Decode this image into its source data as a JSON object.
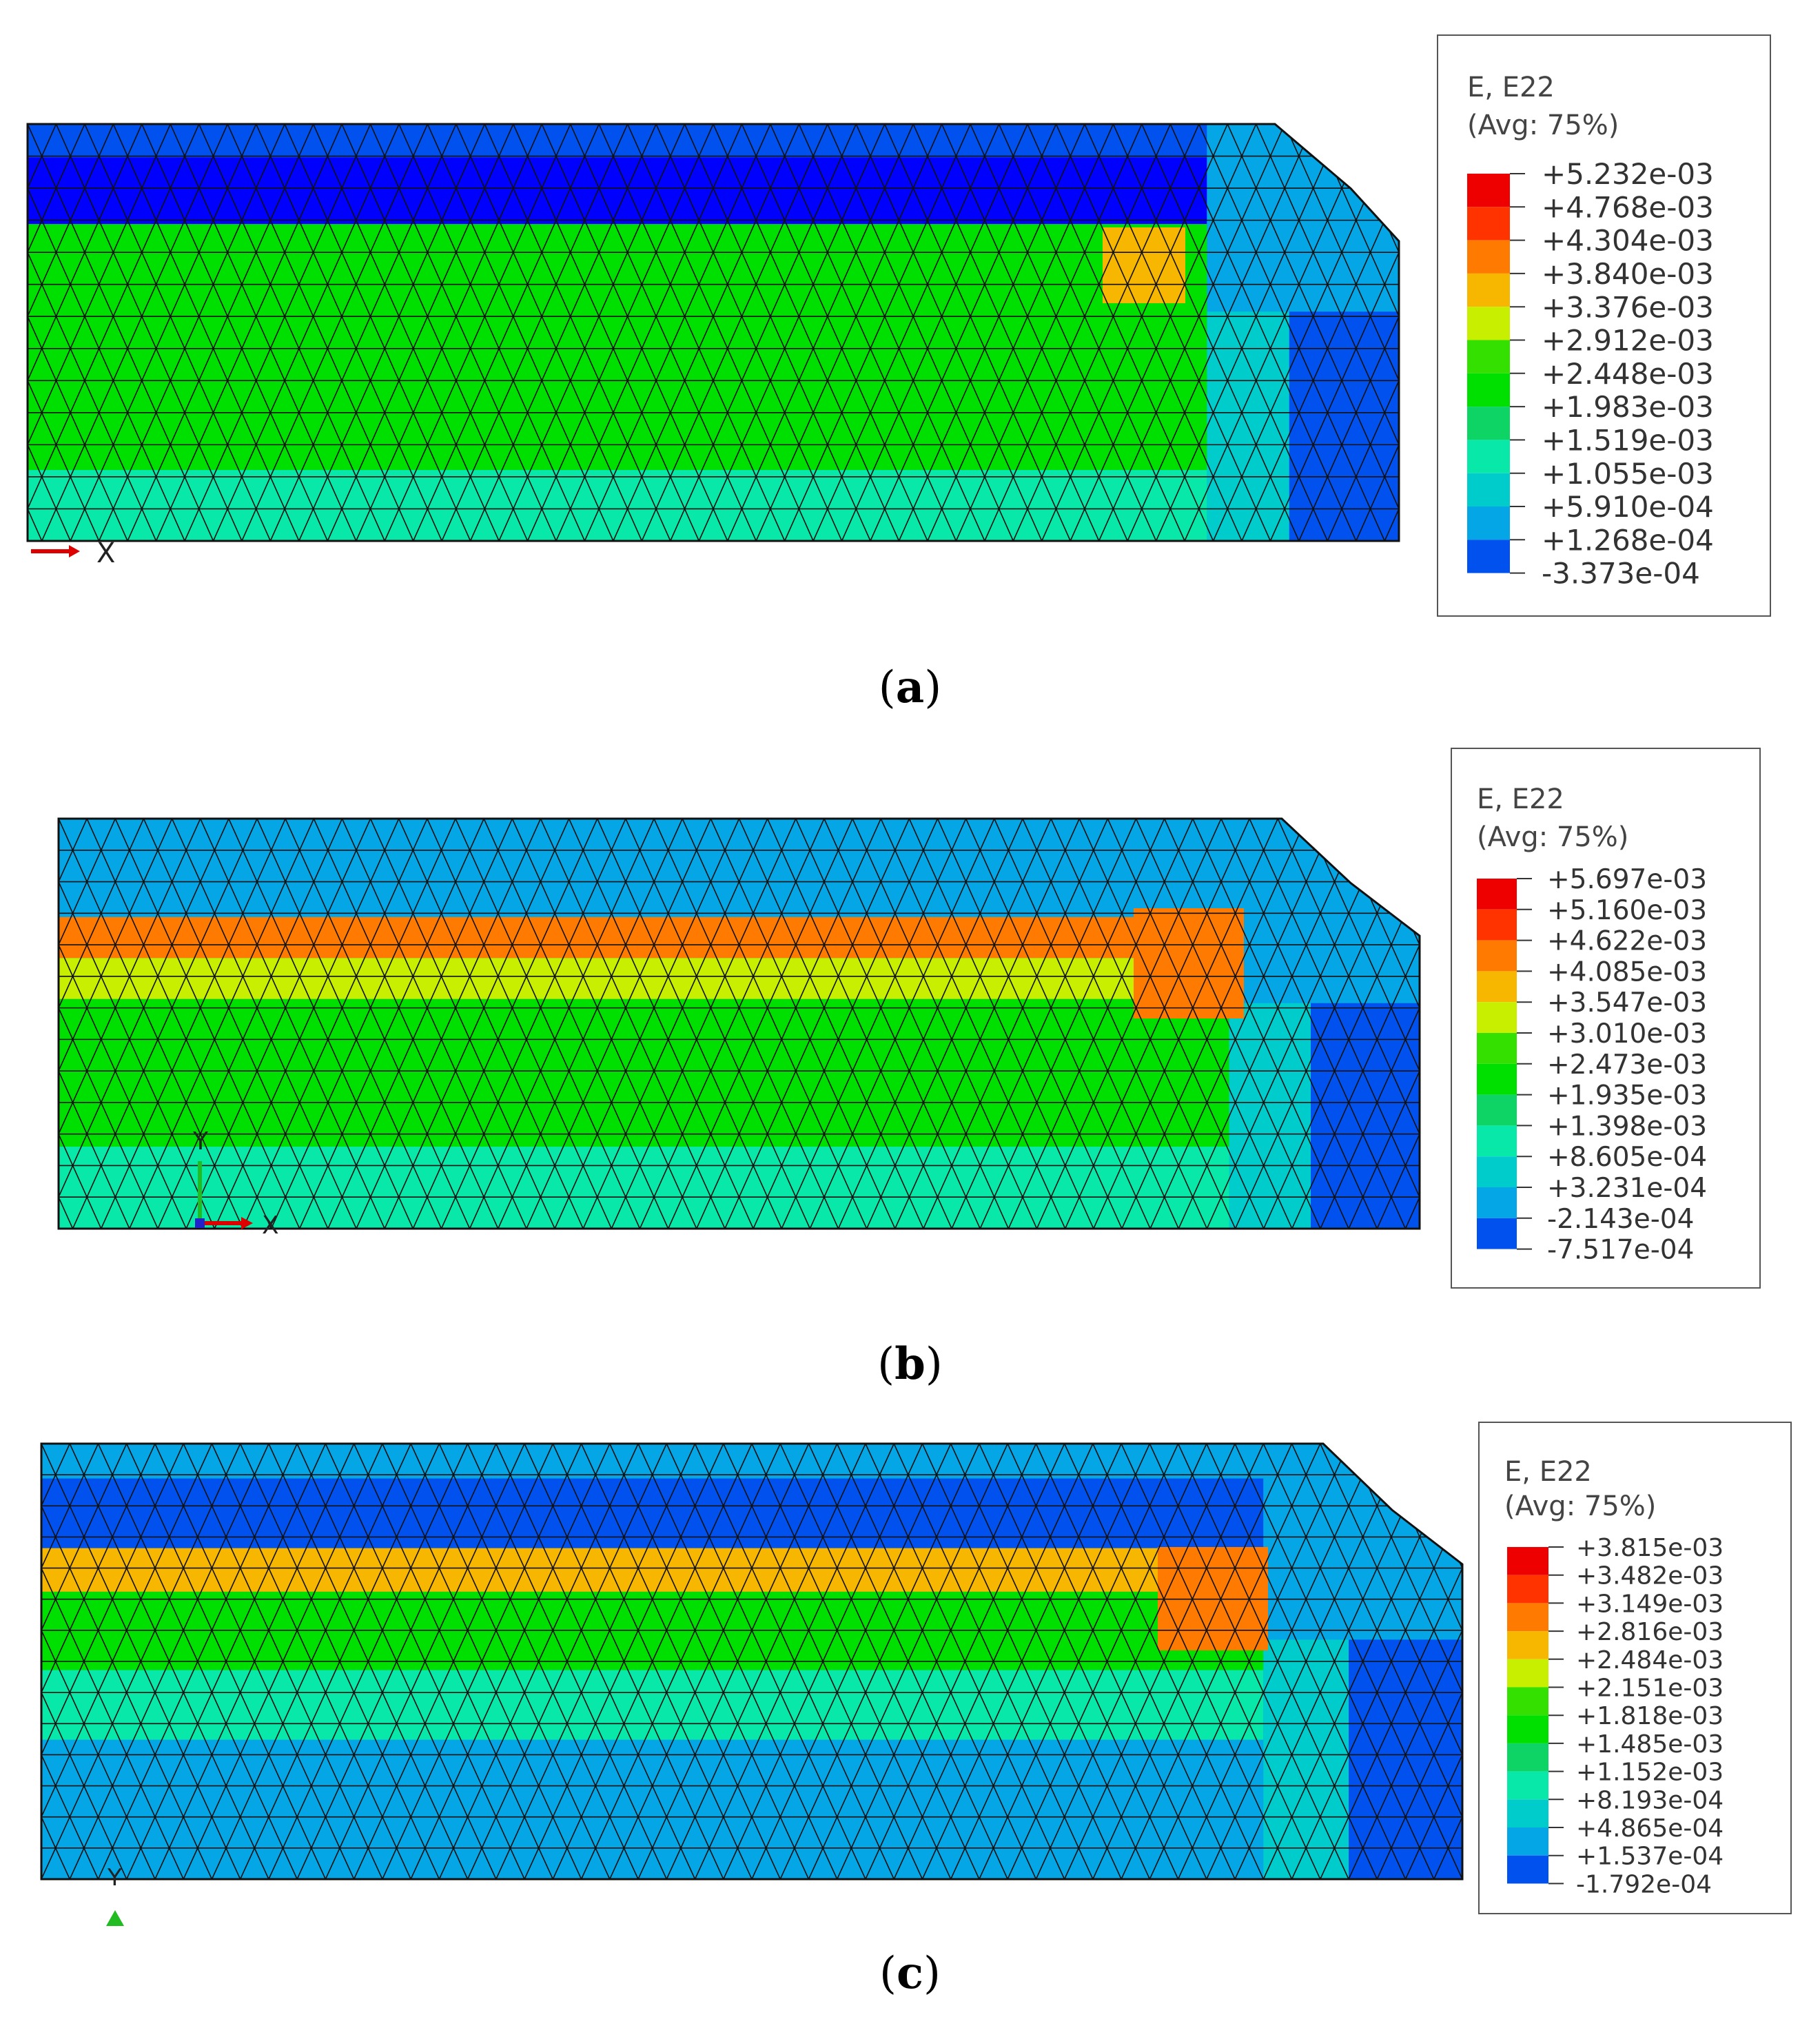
{
  "panels": [
    {
      "id": "a",
      "caption_letter": "a",
      "legend": {
        "title": "E, E22",
        "subtitle": "(Avg: 75%)",
        "values": [
          "+5.232e-03",
          "+4.768e-03",
          "+4.304e-03",
          "+3.840e-03",
          "+3.376e-03",
          "+2.912e-03",
          "+2.448e-03",
          "+1.983e-03",
          "+1.519e-03",
          "+1.055e-03",
          "+5.910e-04",
          "+1.268e-04",
          "-3.373e-04"
        ]
      },
      "triad_labels": [
        "X"
      ],
      "field": {
        "bands": [
          {
            "from": 0.0,
            "to": 0.08,
            "level": 1
          },
          {
            "from": 0.08,
            "to": 0.24,
            "level": 0
          },
          {
            "from": 0.24,
            "to": 0.83,
            "level": 6
          },
          {
            "from": 0.83,
            "to": 1.0,
            "level": 4
          }
        ],
        "hotspot_level": 9
      }
    },
    {
      "id": "b",
      "caption_letter": "b",
      "legend": {
        "title": "E, E22",
        "subtitle": "(Avg: 75%)",
        "values": [
          "+5.697e-03",
          "+5.160e-03",
          "+4.622e-03",
          "+4.085e-03",
          "+3.547e-03",
          "+3.010e-03",
          "+2.473e-03",
          "+1.935e-03",
          "+1.398e-03",
          "+8.605e-04",
          "+3.231e-04",
          "-2.143e-04",
          "-7.517e-04"
        ]
      },
      "triad_labels": [
        "Y",
        "X"
      ],
      "field": {
        "bands": [
          {
            "from": 0.0,
            "to": 0.24,
            "level": 2
          },
          {
            "from": 0.24,
            "to": 0.34,
            "level": 10
          },
          {
            "from": 0.34,
            "to": 0.44,
            "level": 8
          },
          {
            "from": 0.44,
            "to": 0.8,
            "level": 6
          },
          {
            "from": 0.8,
            "to": 1.0,
            "level": 4
          }
        ],
        "hotspot_level": 10
      }
    },
    {
      "id": "c",
      "caption_letter": "c",
      "legend": {
        "title": "E, E22",
        "subtitle": "(Avg: 75%)",
        "values": [
          "+3.815e-03",
          "+3.482e-03",
          "+3.149e-03",
          "+2.816e-03",
          "+2.484e-03",
          "+2.151e-03",
          "+1.818e-03",
          "+1.485e-03",
          "+1.152e-03",
          "+8.193e-04",
          "+4.865e-04",
          "+1.537e-04",
          "-1.792e-04"
        ]
      },
      "triad_labels": [
        "Y"
      ],
      "field": {
        "bands": [
          {
            "from": 0.0,
            "to": 0.08,
            "level": 2
          },
          {
            "from": 0.08,
            "to": 0.24,
            "level": 1
          },
          {
            "from": 0.24,
            "to": 0.34,
            "level": 9
          },
          {
            "from": 0.34,
            "to": 0.52,
            "level": 6
          },
          {
            "from": 0.52,
            "to": 0.68,
            "level": 4
          },
          {
            "from": 0.68,
            "to": 1.0,
            "level": 2
          }
        ],
        "hotspot_level": 10
      }
    }
  ],
  "colormap": [
    "#0000ff",
    "#0051ee",
    "#05a6e6",
    "#00cccc",
    "#08e8a8",
    "#0ed465",
    "#00e000",
    "#34e000",
    "#c8ee00",
    "#f7b600",
    "#ff7a00",
    "#ff3300",
    "#ee0000"
  ]
}
